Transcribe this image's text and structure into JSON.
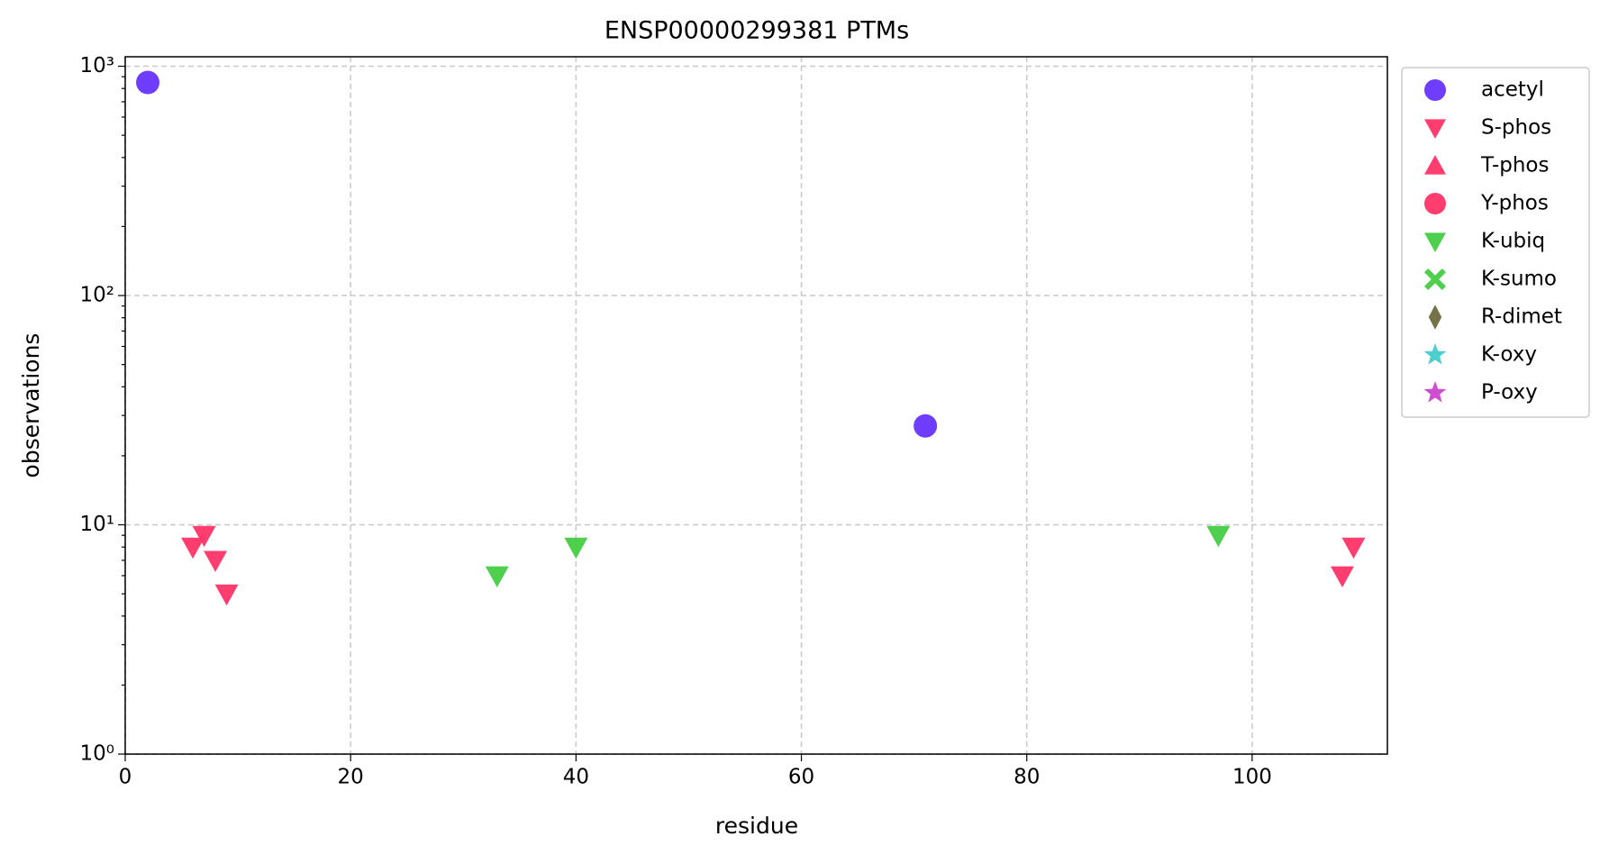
{
  "chart_data": {
    "type": "scatter",
    "title": "ENSP00000299381 PTMs",
    "x_label": "residue",
    "y_label": "observations",
    "xlim": [
      0,
      112
    ],
    "ylim": [
      1,
      1100
    ],
    "yscale": "log",
    "grid": true,
    "legend": "outside right",
    "xticks": [
      0,
      20,
      40,
      60,
      80,
      100
    ],
    "yticks": [
      {
        "value": 1,
        "label": "10⁰"
      },
      {
        "value": 10,
        "label": "10¹"
      },
      {
        "value": 100,
        "label": "10²"
      },
      {
        "value": 1000,
        "label": "10³"
      }
    ],
    "yminorticks": [
      2,
      3,
      4,
      5,
      6,
      7,
      8,
      9,
      20,
      30,
      40,
      50,
      60,
      70,
      80,
      90,
      200,
      300,
      400,
      500,
      600,
      700,
      800,
      900
    ],
    "series": [
      {
        "name": "acetyl",
        "color": "#6633ff",
        "marker": "circle",
        "x": [
          2,
          71
        ],
        "values": [
          850,
          27
        ]
      },
      {
        "name": "S-phos",
        "color": "#ff3366",
        "marker": "triangle-down",
        "x": [
          6,
          7,
          8,
          9,
          108,
          109
        ],
        "values": [
          8,
          9,
          7,
          5,
          6,
          8
        ]
      },
      {
        "name": "T-phos",
        "color": "#ff3366",
        "marker": "triangle-up",
        "x": [],
        "values": []
      },
      {
        "name": "Y-phos",
        "color": "#ff3366",
        "marker": "circle",
        "x": [],
        "values": []
      },
      {
        "name": "K-ubiq",
        "color": "#44cc44",
        "marker": "triangle-down",
        "x": [
          33,
          40,
          97
        ],
        "values": [
          6,
          8,
          9
        ]
      },
      {
        "name": "K-sumo",
        "color": "#44cc44",
        "marker": "x",
        "x": [],
        "values": []
      },
      {
        "name": "R-dimet",
        "color": "#6b6b3d",
        "marker": "thin-diamond",
        "x": [],
        "values": []
      },
      {
        "name": "K-oxy",
        "color": "#44cccc",
        "marker": "star",
        "x": [],
        "values": []
      },
      {
        "name": "P-oxy",
        "color": "#cc44cc",
        "marker": "star",
        "x": [],
        "values": []
      }
    ]
  }
}
